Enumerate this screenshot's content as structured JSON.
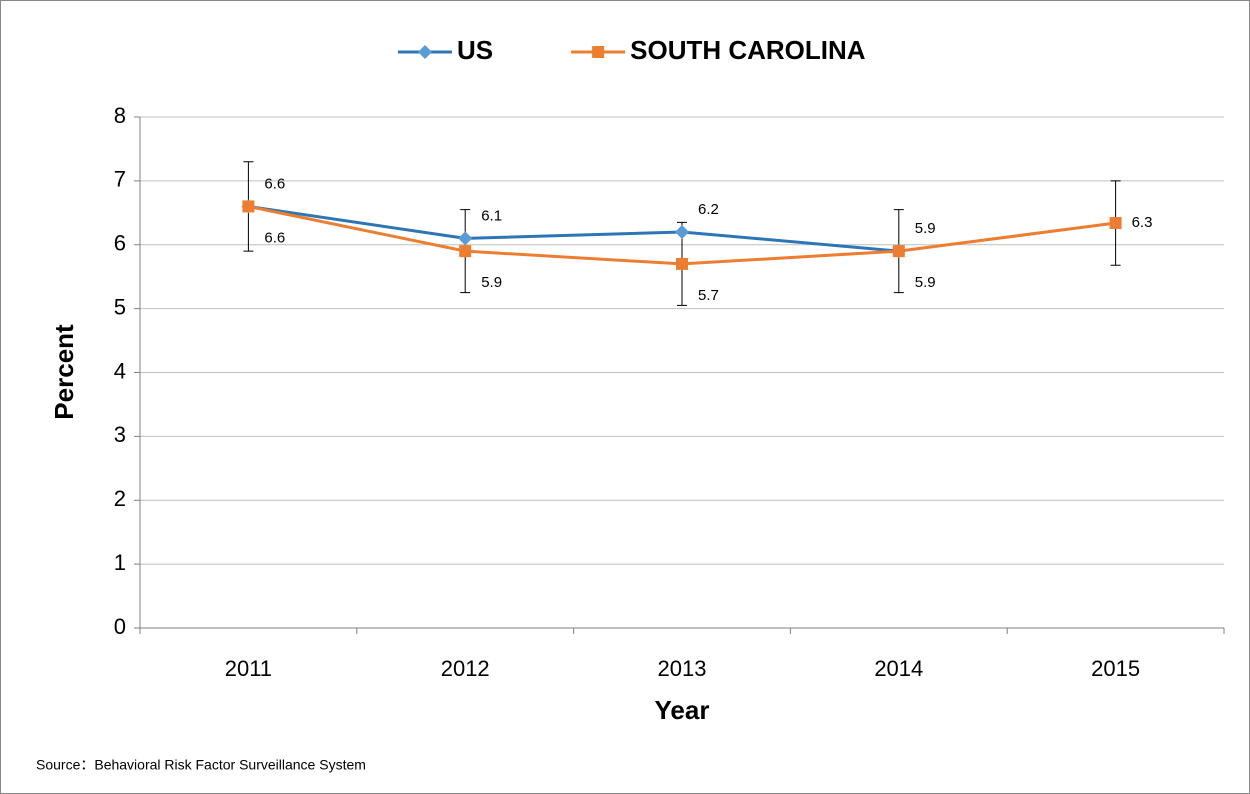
{
  "chart_data": {
    "type": "line",
    "x_label": "Year",
    "y_label": "Percent",
    "source": "Source：Behavioral Risk Factor  Surveillance System",
    "categories": [
      "2011",
      "2012",
      "2013",
      "2014",
      "2015"
    ],
    "series": [
      {
        "name": "US",
        "color": "#2e75b6",
        "marker_color": "#5b9bd5",
        "marker": "diamond",
        "values": [
          6.6,
          6.1,
          6.2,
          5.9,
          null
        ]
      },
      {
        "name": "SOUTH CAROLINA",
        "color": "#ed7d31",
        "marker_color": "#ed7d31",
        "marker": "square",
        "values": [
          6.6,
          5.9,
          5.7,
          5.9,
          6.34
        ],
        "value_labels": [
          "6.6",
          "5.9",
          "5.7",
          "5.9",
          "6.3"
        ],
        "errors": [
          0.7,
          0.65,
          0.65,
          0.65,
          0.66
        ]
      }
    ],
    "ylim": [
      0,
      8
    ],
    "yticks": [
      0,
      1,
      2,
      3,
      4,
      5,
      6,
      7,
      8
    ],
    "grid": true,
    "legend": "top"
  }
}
